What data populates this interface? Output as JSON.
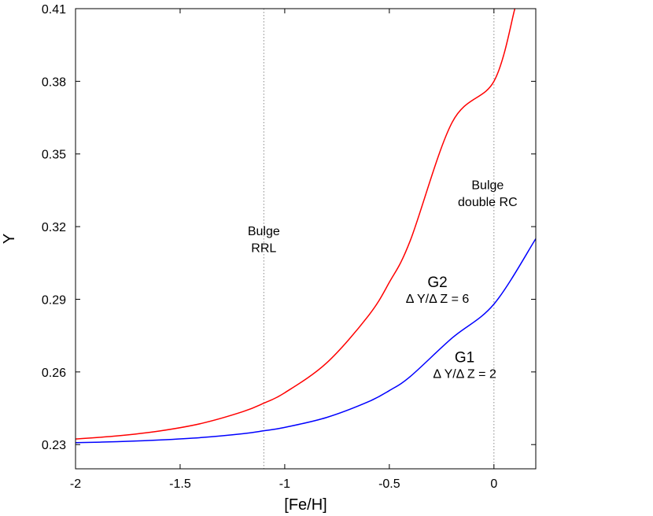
{
  "chart_data": {
    "type": "line",
    "title": "",
    "xlabel": "[Fe/H]",
    "ylabel": "Y",
    "xlim": [
      -2.0,
      0.2
    ],
    "ylim": [
      0.22,
      0.41
    ],
    "x_ticks": [
      -2,
      -1.5,
      -1,
      -0.5,
      0
    ],
    "x_tick_labels": [
      "-2",
      "-1.5",
      "-1",
      "-0.5",
      "0"
    ],
    "y_ticks": [
      0.23,
      0.26,
      0.29,
      0.32,
      0.35,
      0.38,
      0.41
    ],
    "y_tick_labels": [
      "0.23",
      "0.26",
      "0.29",
      "0.32",
      "0.35",
      "0.38",
      "0.41"
    ],
    "grid": false,
    "legend": "none",
    "series": [
      {
        "name": "G2",
        "color": "#ff0000",
        "x": [
          -2.0,
          -1.8,
          -1.6,
          -1.4,
          -1.2,
          -1.1,
          -1.0,
          -0.8,
          -0.6,
          -0.5,
          -0.4,
          -0.2,
          0.0,
          0.1
        ],
        "y": [
          0.2323,
          0.2336,
          0.2356,
          0.2387,
          0.2436,
          0.2471,
          0.2514,
          0.2637,
          0.2832,
          0.297,
          0.3142,
          0.363,
          0.38,
          0.41
        ]
      },
      {
        "name": "G1",
        "color": "#0000ff",
        "x": [
          -2.0,
          -1.8,
          -1.6,
          -1.4,
          -1.2,
          -1.1,
          -1.0,
          -0.8,
          -0.6,
          -0.5,
          -0.4,
          -0.2,
          0.0,
          0.2
        ],
        "y": [
          0.2308,
          0.2312,
          0.2319,
          0.2329,
          0.2345,
          0.2357,
          0.2371,
          0.2412,
          0.2477,
          0.2523,
          0.2581,
          0.274,
          0.288,
          0.315
        ]
      }
    ],
    "vertical_lines": [
      {
        "x": -1.1,
        "style": "dotted",
        "color": "#888888"
      },
      {
        "x": 0.0,
        "style": "dotted",
        "color": "#888888"
      }
    ],
    "annotations": [
      {
        "text": "Bulge",
        "x": -1.1,
        "y": 0.3165,
        "color": "#000000",
        "size": 16
      },
      {
        "text": "RRL",
        "x": -1.1,
        "y": 0.3095,
        "color": "#000000",
        "size": 16
      },
      {
        "text": "Bulge",
        "x": -0.03,
        "y": 0.3355,
        "color": "#000000",
        "size": 16
      },
      {
        "text": "double RC",
        "x": -0.03,
        "y": 0.3285,
        "color": "#000000",
        "size": 16
      },
      {
        "text": "G2",
        "x": -0.27,
        "y": 0.295,
        "color": "#ff0000",
        "size": 19
      },
      {
        "text": "Δ Y/Δ Z = 6",
        "x": -0.27,
        "y": 0.2885,
        "color": "#ff0000",
        "size": 16
      },
      {
        "text": "G1",
        "x": -0.14,
        "y": 0.264,
        "color": "#0000ff",
        "size": 19
      },
      {
        "text": "Δ Y/Δ Z = 2",
        "x": -0.14,
        "y": 0.2575,
        "color": "#0000ff",
        "size": 16
      }
    ]
  }
}
